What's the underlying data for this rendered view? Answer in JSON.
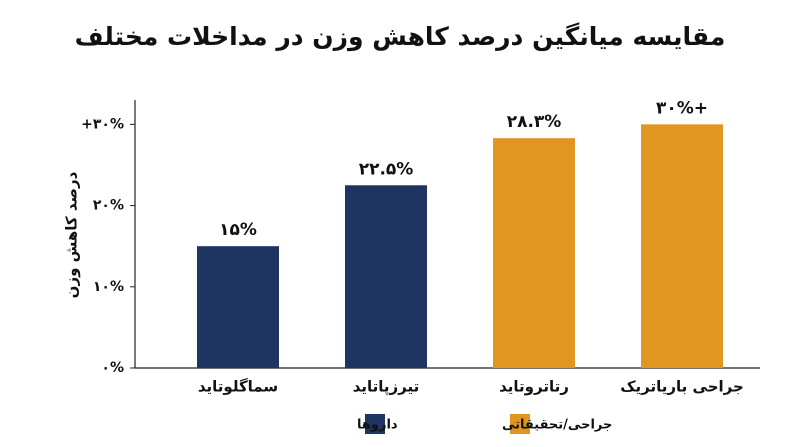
{
  "chart_data": {
    "type": "bar",
    "title": "مقایسه میانگین درصد کاهش وزن در مداخلات مختلف",
    "y_label": "درصد کاهش وزن",
    "categories": [
      "سماگلوتاید",
      "تیرزپاتاید",
      "رتاتروتاید",
      "جراحی باریاتریک"
    ],
    "series": [
      {
        "name": "داروها",
        "color": "#1e3461",
        "values": [
          15,
          22.5,
          null,
          null
        ],
        "value_labels": [
          "۱۵%",
          "۲۲.۵%",
          null,
          null
        ]
      },
      {
        "name": "جراحی/تحقیقاتی",
        "color": "#e0961f",
        "values": [
          null,
          null,
          28.3,
          30
        ],
        "value_labels": [
          null,
          null,
          "۲۸.۳%",
          "۳۰%+"
        ]
      }
    ],
    "ylim": [
      0,
      33
    ],
    "yticks": [
      {
        "value": 0,
        "label": "۰%"
      },
      {
        "value": 10,
        "label": "۱۰%"
      },
      {
        "value": 20,
        "label": "۲۰%"
      },
      {
        "value": 30,
        "label": "+۳۰%"
      }
    ]
  }
}
